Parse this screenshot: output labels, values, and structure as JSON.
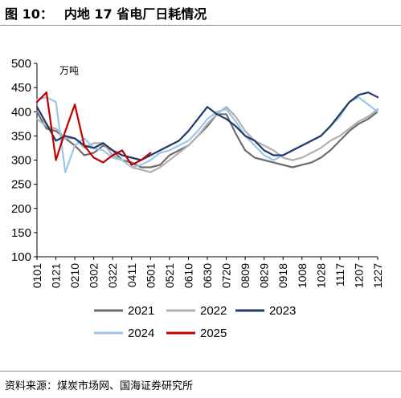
{
  "header": {
    "figure_number": "图 10：",
    "title": "内地 17 省电厂日耗情况"
  },
  "source": "资料来源：煤炭市场网、国海证券研究所",
  "chart_data": {
    "type": "line",
    "unit": "万吨",
    "ylim": [
      100,
      500
    ],
    "yticks": [
      100,
      150,
      200,
      250,
      300,
      350,
      400,
      450,
      500
    ],
    "xticks": [
      "0101",
      "0121",
      "0210",
      "0302",
      "0322",
      "0411",
      "0501",
      "0521",
      "0610",
      "0630",
      "0720",
      "0809",
      "0829",
      "0918",
      "1008",
      "1028",
      "1117",
      "1207",
      "1227"
    ],
    "grid": false,
    "legend_position": "bottom",
    "x_days": [
      1,
      11,
      21,
      31,
      41,
      51,
      61,
      71,
      81,
      91,
      101,
      111,
      121,
      131,
      141,
      151,
      161,
      171,
      181,
      191,
      201,
      211,
      221,
      231,
      241,
      251,
      261,
      271,
      281,
      291,
      301,
      311,
      321,
      331,
      341,
      351,
      361
    ],
    "series": [
      {
        "name": "2021",
        "color": "#6d6d6d",
        "values": [
          400,
          365,
          360,
          345,
          330,
          310,
          315,
          330,
          320,
          300,
          295,
          285,
          285,
          290,
          310,
          320,
          330,
          350,
          370,
          395,
          395,
          355,
          320,
          305,
          300,
          295,
          290,
          285,
          290,
          295,
          305,
          320,
          340,
          360,
          375,
          385,
          400
        ]
      },
      {
        "name": "2022",
        "color": "#b0b0b0",
        "values": [
          385,
          370,
          365,
          345,
          345,
          325,
          335,
          335,
          310,
          300,
          285,
          280,
          275,
          285,
          300,
          315,
          330,
          350,
          375,
          395,
          410,
          390,
          360,
          340,
          330,
          320,
          305,
          300,
          305,
          315,
          325,
          340,
          350,
          365,
          380,
          390,
          405
        ]
      },
      {
        "name": "2023",
        "color": "#1f3a6b",
        "values": [
          410,
          375,
          340,
          350,
          345,
          330,
          325,
          335,
          320,
          310,
          305,
          300,
          310,
          320,
          330,
          340,
          360,
          385,
          410,
          395,
          385,
          370,
          350,
          340,
          320,
          310,
          310,
          320,
          330,
          340,
          350,
          370,
          395,
          420,
          435,
          440,
          430
        ]
      },
      {
        "name": "2024",
        "color": "#9ec4e8",
        "values": [
          425,
          430,
          420,
          275,
          330,
          345,
          325,
          320,
          305,
          300,
          285,
          290,
          300,
          315,
          320,
          330,
          340,
          360,
          385,
          400,
          405,
          380,
          350,
          330,
          310,
          300,
          310,
          320,
          330,
          340,
          350,
          370,
          390,
          420,
          430,
          415,
          400
        ]
      },
      {
        "name": "2025",
        "color": "#c00000",
        "values": [
          420,
          440,
          300,
          360,
          415,
          330,
          305,
          295,
          310,
          320,
          290,
          300,
          315
        ]
      }
    ]
  }
}
